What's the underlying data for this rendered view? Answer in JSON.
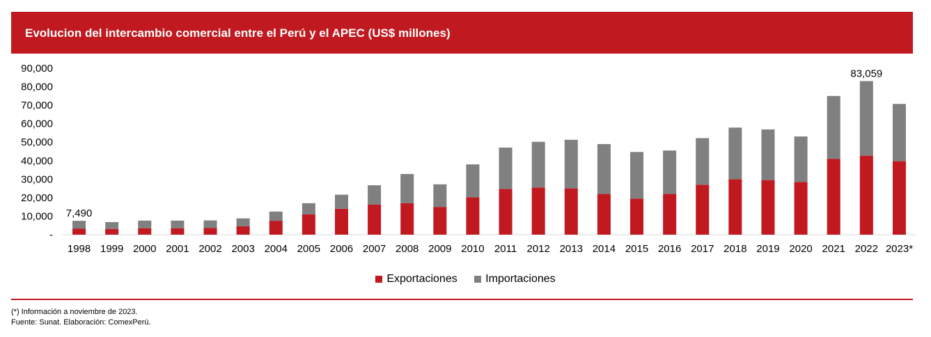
{
  "header": {
    "title": "Evolucion del intercambio comercial entre el Perú y el APEC (US$ millones)"
  },
  "colors": {
    "accent": "#c0191f",
    "exportaciones": "#c0191f",
    "importaciones": "#808080"
  },
  "chart_data": {
    "type": "bar",
    "stacked": true,
    "categories": [
      "1998",
      "1999",
      "2000",
      "2001",
      "2002",
      "2003",
      "2004",
      "2005",
      "2006",
      "2007",
      "2008",
      "2009",
      "2010",
      "2011",
      "2012",
      "2013",
      "2014",
      "2015",
      "2016",
      "2017",
      "2018",
      "2019",
      "2020",
      "2021",
      "2022",
      "2023*"
    ],
    "series": [
      {
        "name": "Exportaciones",
        "values": [
          3200,
          3100,
          3500,
          3400,
          3600,
          4500,
          7500,
          11000,
          14000,
          16300,
          17000,
          15000,
          20200,
          24700,
          25500,
          25000,
          22000,
          19500,
          22000,
          27000,
          30000,
          29500,
          28500,
          41000,
          42700,
          39700
        ]
      },
      {
        "name": "Importaciones",
        "values": [
          4290,
          3700,
          4100,
          4200,
          4100,
          4300,
          5000,
          6000,
          7600,
          10400,
          15800,
          12200,
          17800,
          22400,
          24700,
          26300,
          27000,
          25200,
          23500,
          25200,
          27900,
          27400,
          24600,
          34000,
          40359,
          31000
        ]
      }
    ],
    "yticks": [
      "-",
      "10,000",
      "20,000",
      "30,000",
      "40,000",
      "50,000",
      "60,000",
      "70,000",
      "80,000",
      "90,000"
    ],
    "ylim": [
      0,
      90000
    ],
    "annotations": [
      {
        "category": "1998",
        "label": "7,490"
      },
      {
        "category": "2022",
        "label": "83,059"
      }
    ],
    "legend_position": "bottom",
    "grid": false
  },
  "footer": {
    "note": "(*) Información a noviembre de 2023.",
    "source": "Fuente: Sunat. Elaboración: ComexPerú."
  }
}
